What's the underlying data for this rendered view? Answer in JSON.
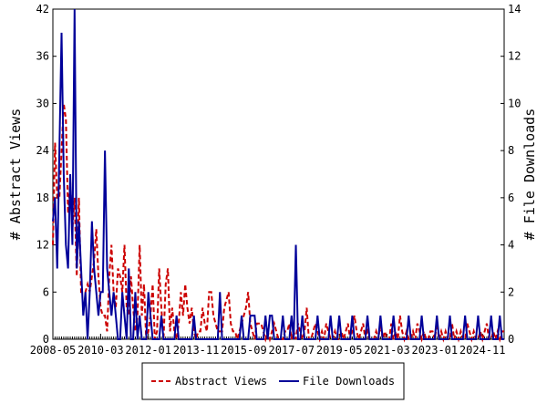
{
  "chart_data": {
    "type": "line",
    "y_label": "# Abstract Views",
    "y2_label": "# File Downloads",
    "x": [
      "2008-05",
      "2008-06",
      "2008-07",
      "2008-08",
      "2008-09",
      "2008-10",
      "2008-11",
      "2008-12",
      "2009-01",
      "2009-02",
      "2009-03",
      "2009-04",
      "2009-05",
      "2009-06",
      "2009-07",
      "2009-08",
      "2009-09",
      "2009-10",
      "2009-11",
      "2009-12",
      "2010-01",
      "2010-02",
      "2010-03",
      "2010-04",
      "2010-05",
      "2010-06",
      "2010-07",
      "2010-08",
      "2010-09",
      "2010-10",
      "2010-11",
      "2010-12",
      "2011-01",
      "2011-02",
      "2011-03",
      "2011-04",
      "2011-05",
      "2011-06",
      "2011-07",
      "2011-08",
      "2011-09",
      "2011-10",
      "2011-11",
      "2011-12",
      "2012-01",
      "2012-02",
      "2012-03",
      "2012-04",
      "2012-05",
      "2012-06",
      "2012-07",
      "2012-08",
      "2012-09",
      "2012-10",
      "2012-11",
      "2012-12",
      "2013-01",
      "2013-02",
      "2013-03",
      "2013-04",
      "2013-05",
      "2013-06",
      "2013-07",
      "2013-08",
      "2013-09",
      "2013-10",
      "2013-11",
      "2013-12",
      "2014-01",
      "2014-02",
      "2014-03",
      "2014-04",
      "2014-05",
      "2014-06",
      "2014-07",
      "2014-08",
      "2014-09",
      "2014-10",
      "2014-11",
      "2014-12",
      "2015-01",
      "2015-02",
      "2015-03",
      "2015-04",
      "2015-05",
      "2015-06",
      "2015-07",
      "2015-08",
      "2015-09",
      "2015-10",
      "2015-11",
      "2015-12",
      "2016-01",
      "2016-02",
      "2016-03",
      "2016-04",
      "2016-05",
      "2016-06",
      "2016-07",
      "2016-08",
      "2016-09",
      "2016-10",
      "2016-11",
      "2016-12",
      "2017-01",
      "2017-02",
      "2017-03",
      "2017-04",
      "2017-05",
      "2017-06",
      "2017-07",
      "2017-08",
      "2017-09",
      "2017-10",
      "2017-11",
      "2017-12",
      "2018-01",
      "2018-02",
      "2018-03",
      "2018-04",
      "2018-05",
      "2018-06",
      "2018-07",
      "2018-08",
      "2018-09",
      "2018-10",
      "2018-11",
      "2018-12",
      "2019-01",
      "2019-02",
      "2019-03",
      "2019-04",
      "2019-05",
      "2019-06",
      "2019-07",
      "2019-08",
      "2019-09",
      "2019-10",
      "2019-11",
      "2019-12",
      "2020-01",
      "2020-02",
      "2020-03",
      "2020-04",
      "2020-05",
      "2020-06",
      "2020-07",
      "2020-08",
      "2020-09",
      "2020-10",
      "2020-11",
      "2020-12",
      "2021-01",
      "2021-02",
      "2021-03",
      "2021-04",
      "2021-05",
      "2021-06",
      "2021-07",
      "2021-08",
      "2021-09",
      "2021-10",
      "2021-11",
      "2021-12",
      "2022-01",
      "2022-02",
      "2022-03",
      "2022-04",
      "2022-05",
      "2022-06",
      "2022-07",
      "2022-08",
      "2022-09",
      "2022-10",
      "2022-11",
      "2022-12",
      "2023-01",
      "2023-02",
      "2023-03",
      "2023-04",
      "2023-05",
      "2023-06",
      "2023-07",
      "2023-08",
      "2023-09",
      "2023-10",
      "2023-11",
      "2023-12",
      "2024-01",
      "2024-02",
      "2024-03",
      "2024-04",
      "2024-05",
      "2024-06",
      "2024-07",
      "2024-08",
      "2024-09",
      "2024-10",
      "2024-11",
      "2024-12",
      "2025-01",
      "2025-02",
      "2025-03",
      "2025-04",
      "2025-05",
      "2025-06",
      "2025-07",
      "2025-08",
      "2025-09"
    ],
    "xticks": [
      "2008-05",
      "2010-03",
      "2012-01",
      "2013-11",
      "2015-09",
      "2017-07",
      "2019-05",
      "2021-03",
      "2023-01",
      "2024-11"
    ],
    "ylim": [
      0,
      42
    ],
    "yticks": [
      0,
      6,
      12,
      18,
      24,
      30,
      36,
      42
    ],
    "y2lim": [
      0,
      14
    ],
    "y2ticks": [
      0,
      2,
      4,
      6,
      8,
      10,
      12,
      14
    ],
    "series": [
      {
        "name": "Abstract Views",
        "color": "#cc0000",
        "dash": true,
        "values": [
          12,
          25,
          18,
          18,
          24,
          30,
          28,
          16,
          20,
          14,
          18,
          8,
          18,
          6,
          6,
          6,
          7,
          6,
          8,
          10,
          14,
          8,
          4,
          3,
          3,
          1,
          8,
          12,
          6,
          4,
          9,
          8,
          6,
          12,
          4,
          3,
          8,
          4,
          1,
          3,
          12,
          3,
          7,
          0,
          1,
          3,
          7,
          0,
          1,
          9,
          4,
          0,
          7,
          9,
          1,
          4,
          1,
          0,
          2,
          6,
          3,
          7,
          4,
          2,
          4,
          1,
          0,
          1,
          1,
          4,
          2,
          1,
          6,
          6,
          3,
          2,
          1,
          1,
          1,
          4,
          5,
          6,
          2,
          1,
          1,
          0,
          1,
          2,
          3,
          4,
          6,
          2,
          1,
          0,
          2,
          2,
          2,
          1,
          0,
          1,
          0,
          1,
          2,
          1,
          0,
          0,
          0,
          1,
          1,
          2,
          0,
          1,
          0,
          2,
          1,
          0,
          1,
          4,
          0,
          0,
          1,
          2,
          1,
          0,
          1,
          0,
          2,
          1,
          0,
          0,
          1,
          0,
          0,
          1,
          0,
          1,
          2,
          0,
          1,
          3,
          1,
          0,
          1,
          2,
          0,
          1,
          0,
          0,
          0,
          1,
          0,
          2,
          0,
          1,
          0,
          0,
          2,
          0,
          1,
          0,
          3,
          1,
          0,
          1,
          0,
          0,
          1,
          0,
          2,
          1,
          0,
          1,
          0,
          0,
          1,
          1,
          0,
          2,
          0,
          1,
          0,
          1,
          0,
          0,
          2,
          0,
          1,
          0,
          1,
          0,
          0,
          2,
          1,
          0,
          1,
          0,
          0,
          1,
          0,
          1,
          2,
          0,
          0,
          1,
          0,
          1,
          0,
          1,
          1
        ]
      },
      {
        "name": "File Downloads",
        "color": "#000099",
        "axis": "y2",
        "values": [
          5,
          6,
          3,
          8,
          13,
          7,
          4,
          3,
          7,
          4,
          14,
          3,
          5,
          3,
          1,
          2,
          0,
          2,
          5,
          3,
          2,
          1,
          2,
          2,
          8,
          3,
          2,
          1,
          2,
          1,
          0,
          0,
          2,
          1,
          0,
          3,
          0,
          0,
          2,
          0,
          1,
          0,
          0,
          0,
          2,
          1,
          0,
          0,
          0,
          0,
          1,
          0,
          0,
          0,
          0,
          0,
          0,
          1,
          0,
          0,
          0,
          0,
          0,
          0,
          0,
          1,
          0,
          0,
          0,
          0,
          0,
          0,
          0,
          0,
          0,
          0,
          0,
          2,
          0,
          0,
          0,
          0,
          0,
          0,
          0,
          0,
          0,
          1,
          0,
          0,
          0,
          1,
          1,
          1,
          0,
          0,
          0,
          0,
          1,
          0,
          1,
          1,
          0,
          0,
          0,
          0,
          1,
          0,
          0,
          0,
          1,
          0,
          4,
          0,
          0,
          1,
          0,
          0,
          0,
          0,
          0,
          0,
          1,
          0,
          0,
          0,
          0,
          0,
          1,
          0,
          0,
          0,
          1,
          0,
          0,
          0,
          0,
          0,
          1,
          0,
          0,
          0,
          0,
          0,
          0,
          1,
          0,
          0,
          0,
          0,
          0,
          1,
          0,
          0,
          0,
          0,
          0,
          1,
          0,
          0,
          0,
          0,
          0,
          0,
          1,
          0,
          0,
          0,
          0,
          0,
          1,
          0,
          0,
          0,
          0,
          0,
          0,
          1,
          0,
          0,
          0,
          0,
          0,
          1,
          0,
          0,
          0,
          0,
          0,
          0,
          1,
          0,
          0,
          0,
          0,
          0,
          1,
          0,
          0,
          0,
          0,
          0,
          1,
          0,
          0,
          0,
          1,
          0,
          0
        ]
      }
    ]
  }
}
